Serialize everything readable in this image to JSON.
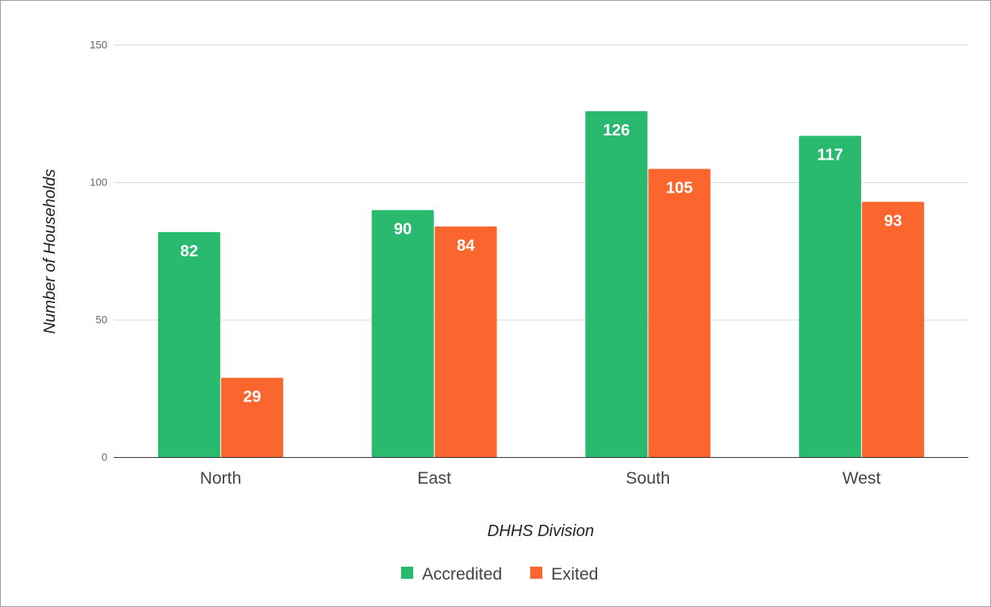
{
  "chart_data": {
    "type": "bar",
    "categories": [
      "North",
      "East",
      "South",
      "West"
    ],
    "series": [
      {
        "name": "Accredited",
        "values": [
          82,
          90,
          126,
          117
        ],
        "color": "#29b96f"
      },
      {
        "name": "Exited",
        "values": [
          29,
          84,
          105,
          93
        ],
        "color": "#fb652e"
      }
    ],
    "xlabel": "DHHS Division",
    "ylabel": "Number of Households",
    "ylim": [
      0,
      150
    ],
    "yticks": [
      0,
      50,
      100,
      150
    ],
    "grid": true,
    "legend_position": "bottom",
    "data_labels": true
  }
}
